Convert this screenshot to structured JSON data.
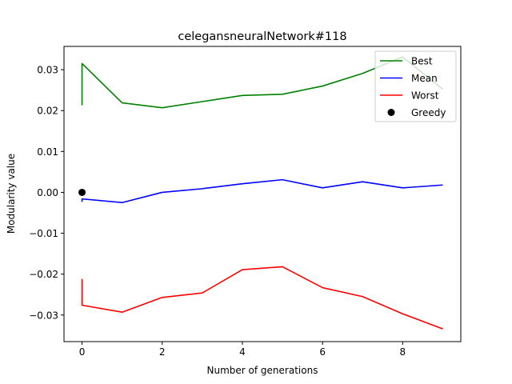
{
  "chart_data": {
    "type": "line",
    "title": "celegansneuralNetwork#118",
    "xlabel": "Number of generations",
    "ylabel": "Modularity value",
    "xlim": [
      -0.45,
      9.45
    ],
    "ylim": [
      -0.0365,
      0.0357
    ],
    "xticks": [
      0,
      2,
      4,
      6,
      8
    ],
    "yticks": [
      -0.03,
      -0.02,
      -0.01,
      0.0,
      0.01,
      0.02,
      0.03
    ],
    "ytick_labels": [
      "−0.03",
      "−0.02",
      "−0.01",
      "0.00",
      "0.01",
      "0.02",
      "0.03"
    ],
    "legend_position": "top-right",
    "series": [
      {
        "name": "Best",
        "color": "#008000",
        "marker": "line",
        "x": [
          0,
          0,
          1,
          2,
          3,
          4,
          5,
          6,
          7,
          8,
          9
        ],
        "y": [
          0.0213,
          0.0315,
          0.0219,
          0.0207,
          0.0222,
          0.0237,
          0.024,
          0.026,
          0.0291,
          0.0331,
          0.0252
        ]
      },
      {
        "name": "Mean",
        "color": "#0000ff",
        "marker": "line",
        "x": [
          0,
          0,
          1,
          2,
          3,
          4,
          5,
          6,
          7,
          8,
          9
        ],
        "y": [
          -0.0023,
          -0.0016,
          -0.0025,
          0.0,
          0.0009,
          0.0021,
          0.0031,
          0.0011,
          0.0026,
          0.0011,
          0.0018
        ]
      },
      {
        "name": "Worst",
        "color": "#ff0000",
        "marker": "line",
        "x": [
          0,
          0,
          1,
          2,
          3,
          4,
          5,
          6,
          7,
          8,
          9
        ],
        "y": [
          -0.0212,
          -0.0276,
          -0.0293,
          -0.0257,
          -0.0246,
          -0.0189,
          -0.0182,
          -0.0233,
          -0.0255,
          -0.0297,
          -0.0334
        ]
      },
      {
        "name": "Greedy",
        "color": "#000000",
        "marker": "point",
        "x": [
          0
        ],
        "y": [
          0.0
        ]
      }
    ]
  }
}
